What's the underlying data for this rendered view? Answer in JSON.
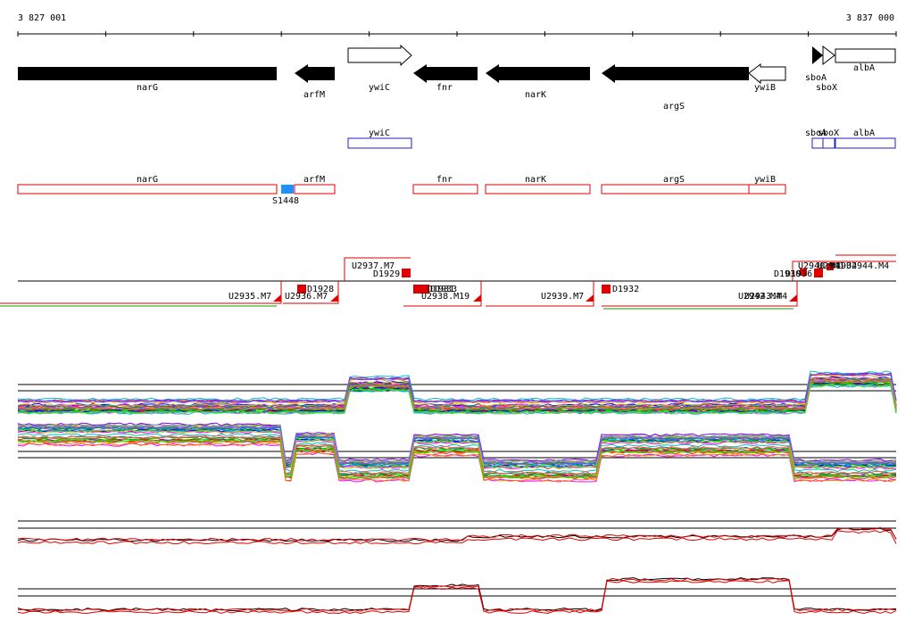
{
  "ruler": {
    "start_label": "3 827 001",
    "end_label": "3 837 000"
  },
  "genes": [
    {
      "name": "narG",
      "strand": "-",
      "filled": true
    },
    {
      "name": "arfM",
      "strand": "-",
      "filled": true
    },
    {
      "name": "ywiC",
      "strand": "+",
      "filled": false
    },
    {
      "name": "fnr",
      "strand": "-",
      "filled": true
    },
    {
      "name": "narK",
      "strand": "-",
      "filled": true
    },
    {
      "name": "argS",
      "strand": "-",
      "filled": true
    },
    {
      "name": "ywiB",
      "strand": "-",
      "filled": false
    },
    {
      "name": "sboA",
      "strand": "+",
      "filled": true
    },
    {
      "name": "sboX",
      "strand": "+",
      "filled": false
    },
    {
      "name": "albA",
      "strand": "+",
      "filled": false
    }
  ],
  "blue_boxes": [
    {
      "label": "ywiC"
    },
    {
      "label": "sboA"
    },
    {
      "label": "sboX"
    },
    {
      "label": "albA"
    }
  ],
  "red_boxes": [
    {
      "label": "narG"
    },
    {
      "label": "arfM"
    },
    {
      "label": "fnr"
    },
    {
      "label": "narK"
    },
    {
      "label": "argS"
    },
    {
      "label": "ywiB"
    }
  ],
  "site_label": "S1448",
  "upper_labels": [
    "U2937.M7",
    "D1929",
    "D1930",
    "D1936",
    "U2940.M4",
    "U2941",
    "D1934",
    "U2944.M4"
  ],
  "lower_labels": [
    "U2935.M7",
    "U2936.M7",
    "D1928",
    "D1931",
    "D1933",
    "U2938.M19",
    "U2939.M7",
    "D1932",
    "U2942.M4",
    "U2943.M4"
  ],
  "colors": {
    "gene_fill": "#000000",
    "blue": "#2020c0",
    "red": "#e00000",
    "site": "#1e90ff",
    "palette": [
      "#ff0000",
      "#00a000",
      "#0000ff",
      "#ff00ff",
      "#00c0c0",
      "#c0c000",
      "#ff8000",
      "#8000ff",
      "#008080",
      "#808000",
      "#a0a0a0",
      "#00ff00",
      "#ff6060",
      "#6060ff",
      "#40c040",
      "#c04080"
    ]
  }
}
